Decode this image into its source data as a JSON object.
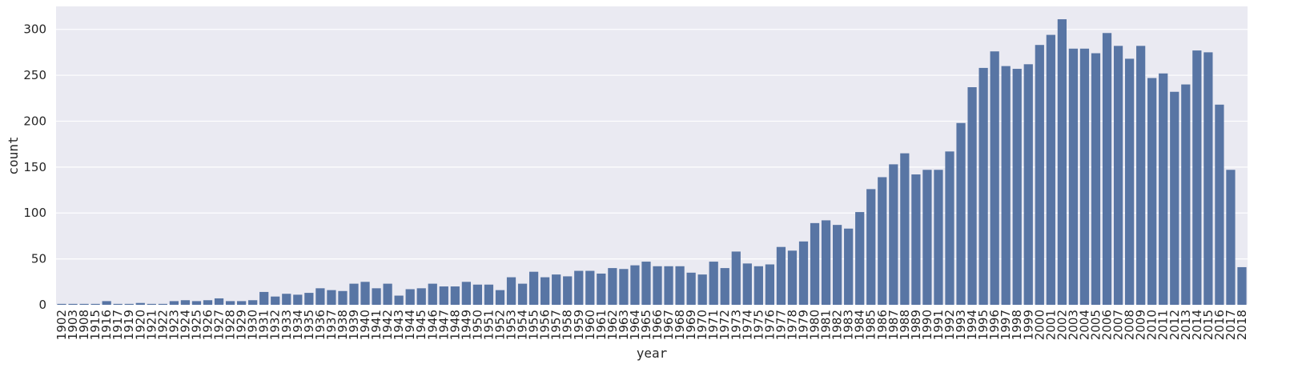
{
  "chart_data": {
    "type": "bar",
    "xlabel": "year",
    "ylabel": "count",
    "ylim": [
      0,
      325
    ],
    "yticks": [
      0,
      50,
      100,
      150,
      200,
      250,
      300
    ],
    "grid": true,
    "bar_color": "#5875a4",
    "background_color": "#eaeaf2",
    "grid_color": "#ffffff",
    "categories": [
      "1902",
      "1903",
      "1908",
      "1915",
      "1916",
      "1917",
      "1919",
      "1920",
      "1921",
      "1922",
      "1923",
      "1924",
      "1925",
      "1926",
      "1927",
      "1928",
      "1929",
      "1930",
      "1931",
      "1932",
      "1933",
      "1934",
      "1935",
      "1936",
      "1937",
      "1938",
      "1939",
      "1940",
      "1941",
      "1942",
      "1943",
      "1944",
      "1945",
      "1946",
      "1947",
      "1948",
      "1949",
      "1950",
      "1951",
      "1952",
      "1953",
      "1954",
      "1955",
      "1956",
      "1957",
      "1958",
      "1959",
      "1960",
      "1961",
      "1962",
      "1963",
      "1964",
      "1965",
      "1966",
      "1967",
      "1968",
      "1969",
      "1970",
      "1971",
      "1972",
      "1973",
      "1974",
      "1975",
      "1976",
      "1977",
      "1978",
      "1979",
      "1980",
      "1981",
      "1982",
      "1983",
      "1984",
      "1985",
      "1986",
      "1987",
      "1988",
      "1989",
      "1990",
      "1991",
      "1992",
      "1993",
      "1994",
      "1995",
      "1996",
      "1997",
      "1998",
      "1999",
      "2000",
      "2001",
      "2002",
      "2003",
      "2004",
      "2005",
      "2006",
      "2007",
      "2008",
      "2009",
      "2010",
      "2011",
      "2012",
      "2013",
      "2014",
      "2015",
      "2016",
      "2017",
      "2018"
    ],
    "values": [
      1,
      1,
      1,
      1,
      4,
      1,
      1,
      2,
      1,
      1,
      4,
      5,
      4,
      5,
      7,
      4,
      4,
      5,
      14,
      9,
      12,
      11,
      13,
      18,
      16,
      15,
      23,
      25,
      18,
      23,
      10,
      17,
      18,
      23,
      20,
      20,
      25,
      22,
      22,
      16,
      30,
      23,
      36,
      30,
      33,
      31,
      37,
      37,
      34,
      40,
      39,
      43,
      47,
      42,
      42,
      42,
      35,
      33,
      47,
      40,
      58,
      45,
      42,
      44,
      63,
      59,
      69,
      89,
      92,
      87,
      83,
      101,
      126,
      139,
      153,
      165,
      142,
      147,
      147,
      167,
      198,
      237,
      258,
      276,
      260,
      257,
      262,
      283,
      294,
      311,
      279,
      279,
      274,
      296,
      282,
      268,
      282,
      247,
      252,
      232,
      240,
      277,
      275,
      218,
      147,
      41
    ]
  }
}
